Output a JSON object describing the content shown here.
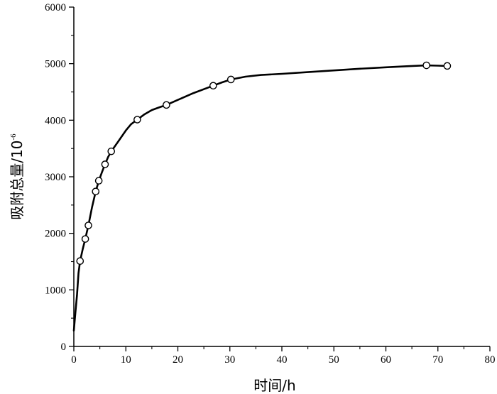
{
  "chart_data": {
    "type": "line",
    "xlabel": "时间/h",
    "ylabel": "吸附总量/10",
    "ylabel_superscript": "-6",
    "xlim": [
      0,
      80
    ],
    "ylim": [
      0,
      6000
    ],
    "x_ticks": [
      0,
      10,
      20,
      30,
      40,
      50,
      60,
      70,
      80
    ],
    "y_ticks": [
      0,
      1000,
      2000,
      3000,
      4000,
      5000,
      6000
    ],
    "x_minor_step": 5,
    "y_minor_step": 500,
    "grid": false,
    "legend": "none",
    "line_color": "#000000",
    "marker": "open-circle",
    "series": [
      {
        "points": [
          {
            "x": 1.2,
            "y": 1510
          },
          {
            "x": 2.2,
            "y": 1900
          },
          {
            "x": 2.8,
            "y": 2140
          },
          {
            "x": 4.2,
            "y": 2740
          },
          {
            "x": 4.8,
            "y": 2930
          },
          {
            "x": 6.0,
            "y": 3220
          },
          {
            "x": 7.2,
            "y": 3450
          },
          {
            "x": 12.2,
            "y": 4010
          },
          {
            "x": 17.8,
            "y": 4270
          },
          {
            "x": 26.8,
            "y": 4610
          },
          {
            "x": 30.2,
            "y": 4720
          },
          {
            "x": 67.8,
            "y": 4970
          },
          {
            "x": 71.8,
            "y": 4960
          }
        ],
        "curve": [
          [
            0,
            280
          ],
          [
            0.3,
            600
          ],
          [
            0.6,
            900
          ],
          [
            0.9,
            1300
          ],
          [
            1.2,
            1510
          ],
          [
            1.7,
            1720
          ],
          [
            2.2,
            1900
          ],
          [
            2.8,
            2140
          ],
          [
            3.5,
            2460
          ],
          [
            4.2,
            2740
          ],
          [
            4.8,
            2930
          ],
          [
            5.4,
            3080
          ],
          [
            6.0,
            3220
          ],
          [
            6.6,
            3350
          ],
          [
            7.2,
            3450
          ],
          [
            8.5,
            3620
          ],
          [
            10.0,
            3820
          ],
          [
            11.0,
            3930
          ],
          [
            12.2,
            4010
          ],
          [
            13.5,
            4100
          ],
          [
            15.0,
            4180
          ],
          [
            16.5,
            4230
          ],
          [
            17.8,
            4270
          ],
          [
            20.0,
            4360
          ],
          [
            23.0,
            4480
          ],
          [
            26.8,
            4610
          ],
          [
            28.5,
            4670
          ],
          [
            30.2,
            4720
          ],
          [
            33.0,
            4770
          ],
          [
            36.0,
            4800
          ],
          [
            40.0,
            4820
          ],
          [
            45.0,
            4850
          ],
          [
            50.0,
            4880
          ],
          [
            55.0,
            4910
          ],
          [
            60.0,
            4935
          ],
          [
            64.0,
            4955
          ],
          [
            67.8,
            4970
          ],
          [
            70.0,
            4965
          ],
          [
            71.8,
            4960
          ]
        ]
      }
    ]
  }
}
